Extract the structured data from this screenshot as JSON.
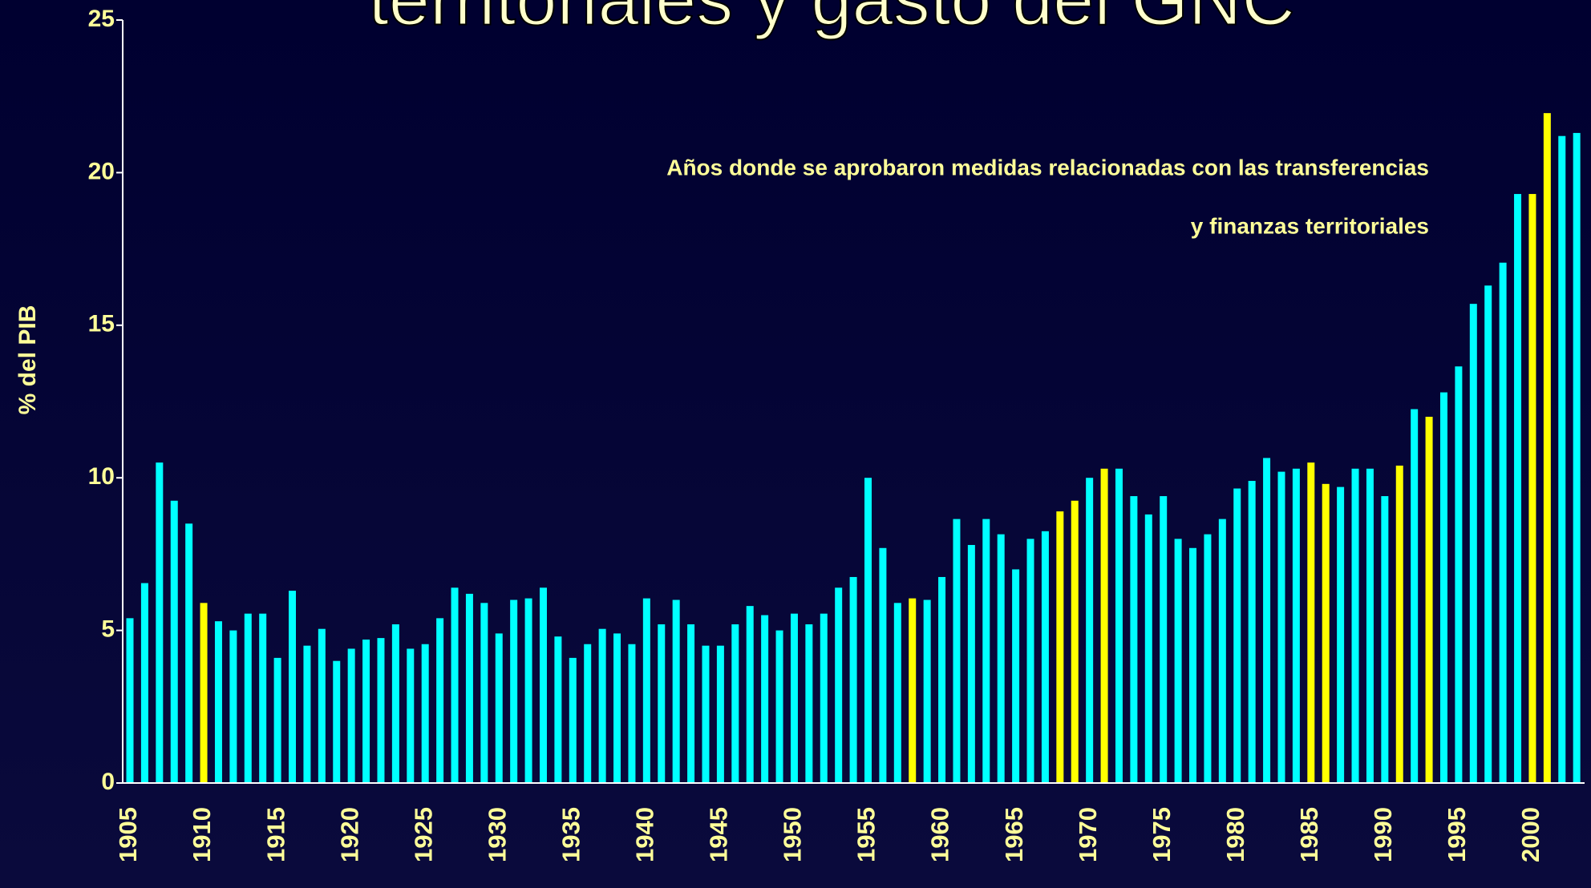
{
  "chart_data": {
    "type": "bar",
    "title": "territoriales y gasto del GNC",
    "annotation": [
      "Años donde se aprobaron medidas relacionadas con  las transferencias",
      "y finanzas territoriales"
    ],
    "ylabel": "% del PIB",
    "categories": [
      "1905",
      null,
      null,
      null,
      null,
      "1910",
      null,
      null,
      null,
      null,
      "1915",
      null,
      null,
      null,
      null,
      "1920",
      null,
      null,
      null,
      null,
      "1925",
      null,
      null,
      null,
      null,
      "1930",
      null,
      null,
      null,
      null,
      "1935",
      null,
      null,
      null,
      null,
      "1940",
      null,
      null,
      null,
      null,
      "1945",
      null,
      null,
      null,
      null,
      "1950",
      null,
      null,
      null,
      null,
      "1955",
      null,
      null,
      null,
      null,
      "1960",
      null,
      null,
      null,
      null,
      "1965",
      null,
      null,
      null,
      null,
      "1970",
      null,
      null,
      null,
      null,
      "1975",
      null,
      null,
      null,
      null,
      "1980",
      null,
      null,
      null,
      null,
      "1985",
      null,
      null,
      null,
      null,
      "1990",
      null,
      null,
      null,
      null,
      "1995",
      null,
      null,
      null,
      null,
      "2000",
      null,
      null,
      null
    ],
    "values": [
      5.4,
      6.55,
      10.5,
      9.25,
      8.5,
      5.9,
      5.3,
      5.0,
      5.55,
      5.55,
      4.1,
      6.3,
      4.5,
      5.05,
      4.0,
      4.4,
      4.7,
      4.75,
      5.2,
      4.4,
      4.55,
      5.4,
      6.4,
      6.2,
      5.9,
      4.9,
      6.0,
      6.05,
      6.4,
      4.8,
      4.1,
      4.55,
      5.05,
      4.9,
      4.55,
      6.05,
      5.2,
      6.0,
      5.2,
      4.5,
      4.5,
      5.2,
      5.8,
      5.5,
      5.0,
      5.55,
      5.2,
      5.55,
      6.4,
      6.75,
      10.0,
      7.7,
      5.9,
      6.05,
      6.0,
      6.75,
      8.65,
      7.8,
      8.65,
      8.15,
      7.0,
      8.0,
      8.25,
      8.9,
      9.25,
      10.0,
      10.3,
      10.3,
      9.4,
      8.8,
      9.4,
      8.0,
      7.7,
      8.15,
      8.65,
      9.65,
      9.9,
      10.65,
      10.2,
      10.3,
      10.5,
      9.8,
      9.7,
      10.3,
      10.3,
      9.4,
      10.4,
      12.25,
      12.0,
      12.8,
      13.65,
      15.7,
      16.3,
      17.05,
      19.3,
      19.3,
      21.95,
      21.2,
      21.3
    ],
    "colors": [
      "#00ffff",
      "#00ffff",
      "#00ffff",
      "#00ffff",
      "#00ffff",
      "#ffff00",
      "#00ffff",
      "#00ffff",
      "#00ffff",
      "#00ffff",
      "#00ffff",
      "#00ffff",
      "#00ffff",
      "#00ffff",
      "#00ffff",
      "#00ffff",
      "#00ffff",
      "#00ffff",
      "#00ffff",
      "#00ffff",
      "#00ffff",
      "#00ffff",
      "#00ffff",
      "#00ffff",
      "#00ffff",
      "#00ffff",
      "#00ffff",
      "#00ffff",
      "#00ffff",
      "#00ffff",
      "#00ffff",
      "#00ffff",
      "#00ffff",
      "#00ffff",
      "#00ffff",
      "#00ffff",
      "#00ffff",
      "#00ffff",
      "#00ffff",
      "#00ffff",
      "#00ffff",
      "#00ffff",
      "#00ffff",
      "#00ffff",
      "#00ffff",
      "#00ffff",
      "#00ffff",
      "#00ffff",
      "#00ffff",
      "#00ffff",
      "#00ffff",
      "#00ffff",
      "#00ffff",
      "#ffff00",
      "#00ffff",
      "#00ffff",
      "#00ffff",
      "#00ffff",
      "#00ffff",
      "#00ffff",
      "#00ffff",
      "#00ffff",
      "#00ffff",
      "#ffff00",
      "#ffff00",
      "#00ffff",
      "#ffff00",
      "#00ffff",
      "#00ffff",
      "#00ffff",
      "#00ffff",
      "#00ffff",
      "#00ffff",
      "#00ffff",
      "#00ffff",
      "#00ffff",
      "#00ffff",
      "#00ffff",
      "#00ffff",
      "#00ffff",
      "#ffff00",
      "#ffff00",
      "#00ffff",
      "#00ffff",
      "#00ffff",
      "#00ffff",
      "#ffff00",
      "#00ffff",
      "#ffff00",
      "#00ffff",
      "#00ffff",
      "#00ffff",
      "#00ffff",
      "#00ffff",
      "#00ffff",
      "#ffff00",
      "#ffff00",
      "#00ffff",
      "#00ffff"
    ],
    "ylim": [
      0,
      25
    ],
    "yticks": [
      0,
      5,
      10,
      15,
      20,
      25
    ]
  }
}
